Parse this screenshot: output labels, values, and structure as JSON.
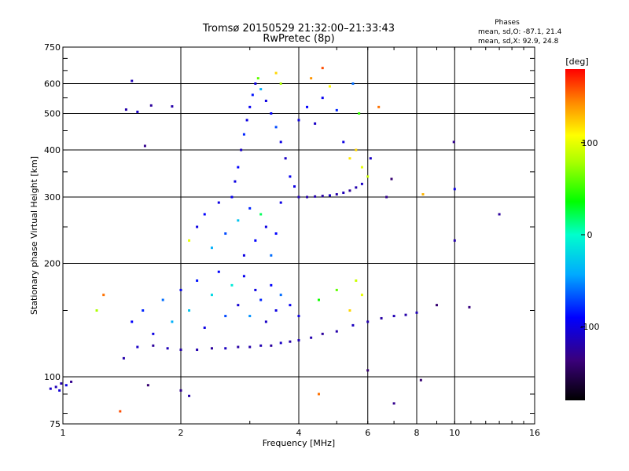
{
  "chart_data": {
    "type": "scatter",
    "title": "Tromsø 20150529 21:32:00–21:33:43",
    "subtitle": "RwPretec (8p)",
    "xlabel": "Frequency [MHz]",
    "ylabel": "Stationary phase Virtual Height [km]",
    "x_scale": "log",
    "y_scale": "log",
    "xlim": [
      1,
      16
    ],
    "ylim": [
      75,
      750
    ],
    "x_ticks": [
      "1",
      "2",
      "4",
      "6",
      "8",
      "10",
      "16"
    ],
    "x_grid": [
      2,
      4,
      6,
      8,
      10
    ],
    "y_ticks": [
      "75",
      "100",
      "200",
      "300",
      "400",
      "500",
      "600",
      "750"
    ],
    "y_grid": [
      100,
      200,
      300,
      400,
      500,
      600
    ],
    "grid": true,
    "stats": {
      "heading": "Phases",
      "line_o": "mean, sd,O: -87.1, 21.4",
      "line_x": "mean, sd,X:  92.9, 24.8"
    },
    "colorbar": {
      "label": "[deg]",
      "range": [
        -180,
        180
      ],
      "ticks": [
        "100",
        "0",
        "-100"
      ],
      "tick_values": [
        100,
        0,
        -100
      ],
      "colormap": "rainbow"
    },
    "series": [
      {
        "points": [
          [
            0.93,
            93,
            -110
          ],
          [
            0.96,
            94,
            -115
          ],
          [
            0.99,
            96,
            -120
          ],
          [
            1.02,
            95,
            -100
          ],
          [
            1.05,
            97,
            -130
          ],
          [
            0.98,
            92,
            -105
          ],
          [
            1.45,
            512,
            -120
          ],
          [
            1.55,
            505,
            -110
          ],
          [
            1.68,
            525,
            -125
          ],
          [
            1.5,
            610,
            -115
          ],
          [
            1.9,
            522,
            -120
          ],
          [
            1.62,
            410,
            -130
          ],
          [
            1.27,
            165,
            150
          ],
          [
            1.22,
            150,
            80
          ],
          [
            1.65,
            95,
            -140
          ],
          [
            1.4,
            81,
            160
          ],
          [
            1.43,
            112,
            -120
          ],
          [
            1.55,
            120,
            -110
          ],
          [
            1.7,
            121,
            -125
          ],
          [
            1.85,
            119,
            -115
          ],
          [
            2.0,
            118,
            -120
          ],
          [
            2.2,
            118,
            -118
          ],
          [
            2.4,
            119,
            -125
          ],
          [
            2.6,
            119,
            -112
          ],
          [
            2.8,
            120,
            -122
          ],
          [
            3.0,
            120,
            -120
          ],
          [
            3.2,
            121,
            -117
          ],
          [
            3.4,
            121,
            -124
          ],
          [
            3.6,
            123,
            -110
          ],
          [
            3.8,
            124,
            -121
          ],
          [
            4.0,
            125,
            -115
          ],
          [
            4.3,
            127,
            -118
          ],
          [
            4.6,
            130,
            -125
          ],
          [
            5.0,
            132,
            -120
          ],
          [
            5.5,
            137,
            -112
          ],
          [
            6.0,
            140,
            -118
          ],
          [
            6.5,
            143,
            -122
          ],
          [
            7.0,
            145,
            -116
          ],
          [
            7.5,
            146,
            -120
          ],
          [
            8.0,
            148,
            -115
          ],
          [
            1.5,
            140,
            -90
          ],
          [
            1.6,
            150,
            -80
          ],
          [
            1.7,
            130,
            -100
          ],
          [
            1.8,
            160,
            -60
          ],
          [
            1.9,
            140,
            -40
          ],
          [
            2.0,
            170,
            -95
          ],
          [
            2.1,
            150,
            -30
          ],
          [
            2.2,
            180,
            -85
          ],
          [
            2.3,
            135,
            -100
          ],
          [
            2.4,
            165,
            -20
          ],
          [
            2.5,
            190,
            -90
          ],
          [
            2.6,
            145,
            -70
          ],
          [
            2.7,
            175,
            -10
          ],
          [
            2.8,
            155,
            -105
          ],
          [
            2.9,
            185,
            -95
          ],
          [
            3.0,
            145,
            -50
          ],
          [
            3.1,
            170,
            -100
          ],
          [
            3.2,
            160,
            -80
          ],
          [
            3.3,
            140,
            -110
          ],
          [
            3.4,
            175,
            -90
          ],
          [
            3.5,
            150,
            -100
          ],
          [
            3.6,
            165,
            -60
          ],
          [
            3.8,
            155,
            -95
          ],
          [
            4.0,
            145,
            -100
          ],
          [
            4.5,
            160,
            40
          ],
          [
            5.0,
            170,
            60
          ],
          [
            5.6,
            180,
            90
          ],
          [
            5.4,
            150,
            120
          ],
          [
            5.8,
            165,
            100
          ],
          [
            2.1,
            230,
            100
          ],
          [
            2.2,
            250,
            -100
          ],
          [
            2.3,
            270,
            -90
          ],
          [
            2.4,
            220,
            -40
          ],
          [
            2.5,
            290,
            -100
          ],
          [
            2.6,
            240,
            -70
          ],
          [
            2.7,
            300,
            -95
          ],
          [
            2.8,
            260,
            -30
          ],
          [
            2.9,
            210,
            -100
          ],
          [
            3.0,
            280,
            -80
          ],
          [
            3.1,
            230,
            -90
          ],
          [
            3.2,
            270,
            20
          ],
          [
            3.3,
            250,
            -100
          ],
          [
            3.4,
            210,
            -60
          ],
          [
            3.5,
            240,
            -90
          ],
          [
            3.6,
            290,
            -100
          ],
          [
            2.75,
            330,
            -100
          ],
          [
            2.8,
            360,
            -90
          ],
          [
            2.85,
            400,
            -110
          ],
          [
            2.9,
            440,
            -80
          ],
          [
            2.95,
            480,
            -100
          ],
          [
            3.0,
            520,
            -95
          ],
          [
            3.05,
            560,
            -85
          ],
          [
            3.1,
            600,
            -100
          ],
          [
            3.15,
            620,
            60
          ],
          [
            3.2,
            580,
            -40
          ],
          [
            3.3,
            540,
            -100
          ],
          [
            3.4,
            500,
            -90
          ],
          [
            3.5,
            460,
            -70
          ],
          [
            3.6,
            420,
            -100
          ],
          [
            3.7,
            380,
            -110
          ],
          [
            3.8,
            340,
            -95
          ],
          [
            3.9,
            320,
            -100
          ],
          [
            3.5,
            640,
            120
          ],
          [
            3.6,
            600,
            80
          ],
          [
            4.0,
            300,
            -115
          ],
          [
            4.2,
            300,
            -120
          ],
          [
            4.4,
            301,
            -118
          ],
          [
            4.6,
            302,
            -122
          ],
          [
            4.8,
            303,
            -110
          ],
          [
            5.0,
            305,
            -120
          ],
          [
            5.2,
            308,
            -115
          ],
          [
            5.4,
            312,
            -125
          ],
          [
            5.6,
            318,
            -118
          ],
          [
            5.8,
            325,
            -110
          ],
          [
            4.0,
            480,
            -100
          ],
          [
            4.2,
            520,
            -90
          ],
          [
            4.4,
            470,
            -110
          ],
          [
            4.6,
            550,
            -95
          ],
          [
            4.8,
            590,
            110
          ],
          [
            5.0,
            510,
            -80
          ],
          [
            5.2,
            420,
            -100
          ],
          [
            5.4,
            380,
            115
          ],
          [
            5.6,
            400,
            120
          ],
          [
            5.8,
            360,
            100
          ],
          [
            6.0,
            340,
            90
          ],
          [
            5.5,
            600,
            -60
          ],
          [
            5.7,
            500,
            50
          ],
          [
            4.3,
            620,
            140
          ],
          [
            4.6,
            660,
            160
          ],
          [
            6.4,
            520,
            150
          ],
          [
            6.7,
            300,
            -130
          ],
          [
            6.1,
            380,
            -110
          ],
          [
            6.9,
            335,
            -140
          ],
          [
            8.3,
            305,
            130
          ],
          [
            9.0,
            155,
            -140
          ],
          [
            10.9,
            153,
            -135
          ],
          [
            9.95,
            420,
            -130
          ],
          [
            10.0,
            230,
            -120
          ],
          [
            10.0,
            315,
            -100
          ],
          [
            13.0,
            270,
            -125
          ],
          [
            7.0,
            85,
            -130
          ],
          [
            8.2,
            98,
            -140
          ],
          [
            6.0,
            104,
            -140
          ],
          [
            4.5,
            90,
            150
          ],
          [
            2.0,
            92,
            -130
          ],
          [
            2.1,
            89,
            -120
          ]
        ]
      }
    ]
  }
}
